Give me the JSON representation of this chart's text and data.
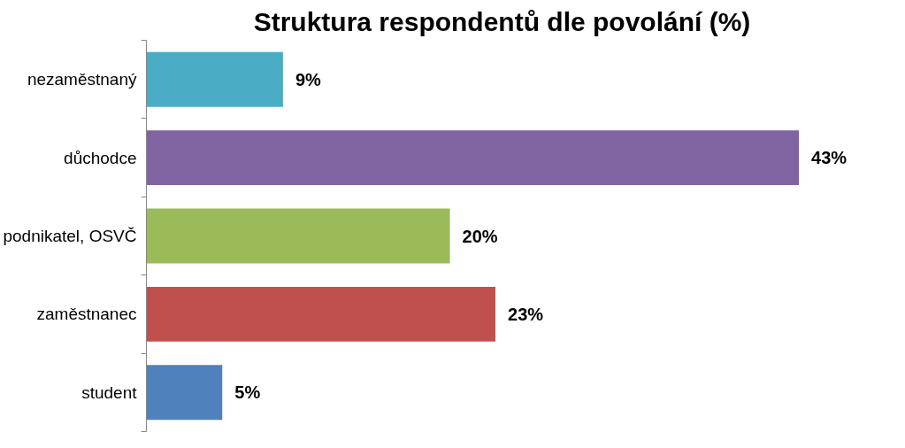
{
  "chart_data": {
    "type": "bar",
    "orientation": "horizontal",
    "title": "Struktura respondentů dle povolání (%)",
    "categories": [
      "nezaměstnaný",
      "důchodce",
      "podnikatel, OSVČ",
      "zaměstnanec",
      "student"
    ],
    "values": [
      9,
      43,
      20,
      23,
      5
    ],
    "colors": [
      "#4bacc6",
      "#8064a2",
      "#9bbb59",
      "#c0504d",
      "#4f81bd"
    ],
    "value_labels": [
      "9%",
      "43%",
      "20%",
      "23%",
      "5%"
    ],
    "grid": false
  }
}
